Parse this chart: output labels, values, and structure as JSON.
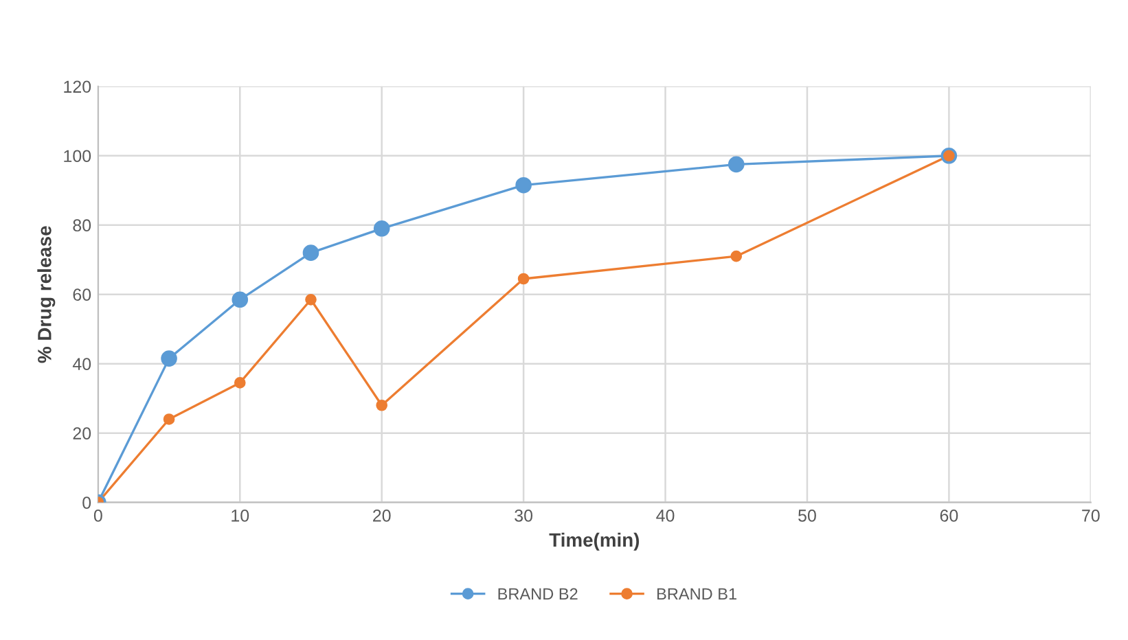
{
  "chart_data": {
    "type": "line",
    "xlabel": "Time(min)",
    "ylabel": "% Drug release",
    "x": [
      0,
      5,
      10,
      15,
      20,
      30,
      45,
      60
    ],
    "series": [
      {
        "name": "BRAND B2",
        "color": "#5b9bd5",
        "values": [
          0,
          41.5,
          58.5,
          72,
          79,
          91.5,
          97.5,
          100
        ]
      },
      {
        "name": "BRAND B1",
        "color": "#ed7d31",
        "values": [
          0,
          24,
          34.5,
          58.5,
          28,
          64.5,
          71,
          100
        ]
      }
    ],
    "xlim": [
      0,
      70
    ],
    "xticks": [
      0,
      10,
      20,
      30,
      40,
      50,
      60,
      70
    ],
    "ylim": [
      0,
      120
    ],
    "yticks": [
      0,
      20,
      40,
      60,
      80,
      100,
      120
    ],
    "grid": true,
    "legend": "bottom",
    "marker": "circle",
    "line_style": "solid"
  }
}
